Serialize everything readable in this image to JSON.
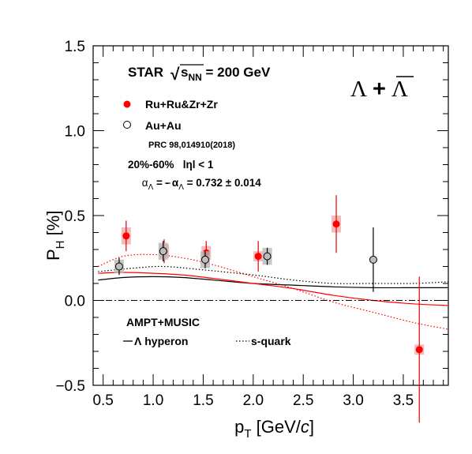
{
  "chart_data": {
    "type": "scatter",
    "xlim": [
      0.4,
      3.95
    ],
    "ylim": [
      -0.5,
      1.5
    ],
    "x_ticks": [
      "0.5",
      "1.0",
      "1.5",
      "2.0",
      "2.5",
      "3.0",
      "3.5"
    ],
    "y_ticks": [
      "−0.5",
      "0.0",
      "0.5",
      "1.0",
      "1.5"
    ],
    "xlabel": {
      "main": "p",
      "sub": "T",
      "unit_pre": " [GeV/",
      "unit_italic": "c",
      "unit_post": "]"
    },
    "ylabel": {
      "main": "P",
      "sub": "H",
      "unit": " [%]"
    },
    "grid": false,
    "annotations": {
      "star": "STAR",
      "sqrt": "√",
      "s": "s",
      "nn": "NN",
      "energy": " = 200 GeV",
      "particle_l": "Λ",
      "particle_plus": "+",
      "particle_r": "Λ",
      "centrality": "20%-60%   lηl < 1",
      "alpha_a": "α",
      "alpha_sub1": "Λ",
      "alpha_mid": " = - α",
      "alpha_sub2": "Λ",
      "alpha_value": " = 0.732 ± 0.014",
      "reference": "PRC 98,014910(2018)",
      "model": "AMPT+MUSIC",
      "model_lambda": "Λ hyperon",
      "model_squark": "s-quark"
    },
    "series": [
      {
        "name": "Ru+Ru&Zr+Zr",
        "marker": "filled-circle",
        "color": "#ff0000",
        "x": [
          0.73,
          1.11,
          1.53,
          2.05,
          2.83,
          3.66
        ],
        "y": [
          0.38,
          0.29,
          0.28,
          0.26,
          0.45,
          -0.29
        ],
        "err": [
          0.09,
          0.07,
          0.07,
          0.09,
          0.17,
          0.43
        ],
        "sys": [
          0.05,
          0.04,
          0.04,
          0.03,
          0.05,
          0.03
        ]
      },
      {
        "name": "Au+Au",
        "marker": "open-circle",
        "color": "#000000",
        "x": [
          0.66,
          1.1,
          1.52,
          2.14,
          3.2
        ],
        "y": [
          0.2,
          0.29,
          0.24,
          0.26,
          0.24
        ],
        "err": [
          0.05,
          0.06,
          0.05,
          0.05,
          0.19
        ],
        "sys": [
          0.04,
          0.05,
          0.05,
          0.05,
          0.0
        ]
      }
    ],
    "reference_line": {
      "y": 0.0,
      "style": "dash-dot",
      "color": "#000000"
    },
    "model_curves": [
      {
        "model": "Λ hyperon",
        "color": "#000000",
        "style": "solid",
        "x": [
          0.45,
          0.7,
          1.0,
          1.3,
          1.6,
          2.0,
          2.4,
          2.8,
          3.2,
          3.6,
          3.95
        ],
        "y": [
          0.12,
          0.135,
          0.14,
          0.135,
          0.12,
          0.1,
          0.09,
          0.08,
          0.075,
          0.075,
          0.075
        ]
      },
      {
        "model": "s-quark",
        "color": "#000000",
        "style": "dotted",
        "x": [
          0.45,
          0.8,
          1.1,
          1.5,
          2.0,
          2.4,
          2.8,
          3.2,
          3.6,
          3.95
        ],
        "y": [
          0.17,
          0.19,
          0.2,
          0.18,
          0.15,
          0.12,
          0.1,
          0.1,
          0.1,
          0.11
        ]
      },
      {
        "model": "Λ hyperon",
        "color": "#ff0000",
        "style": "solid",
        "x": [
          0.45,
          0.7,
          1.0,
          1.3,
          1.6,
          2.0,
          2.4,
          2.8,
          3.2,
          3.6,
          3.95
        ],
        "y": [
          0.16,
          0.165,
          0.16,
          0.15,
          0.13,
          0.1,
          0.07,
          0.03,
          0.0,
          -0.02,
          -0.03
        ]
      },
      {
        "model": "s-quark",
        "color": "#ff0000",
        "style": "dotted",
        "x": [
          0.45,
          0.7,
          1.0,
          1.3,
          1.6,
          2.0,
          2.4,
          2.8,
          3.2,
          3.6,
          3.95
        ],
        "y": [
          0.2,
          0.26,
          0.27,
          0.25,
          0.21,
          0.14,
          0.07,
          -0.01,
          -0.07,
          -0.13,
          -0.17
        ]
      }
    ]
  }
}
